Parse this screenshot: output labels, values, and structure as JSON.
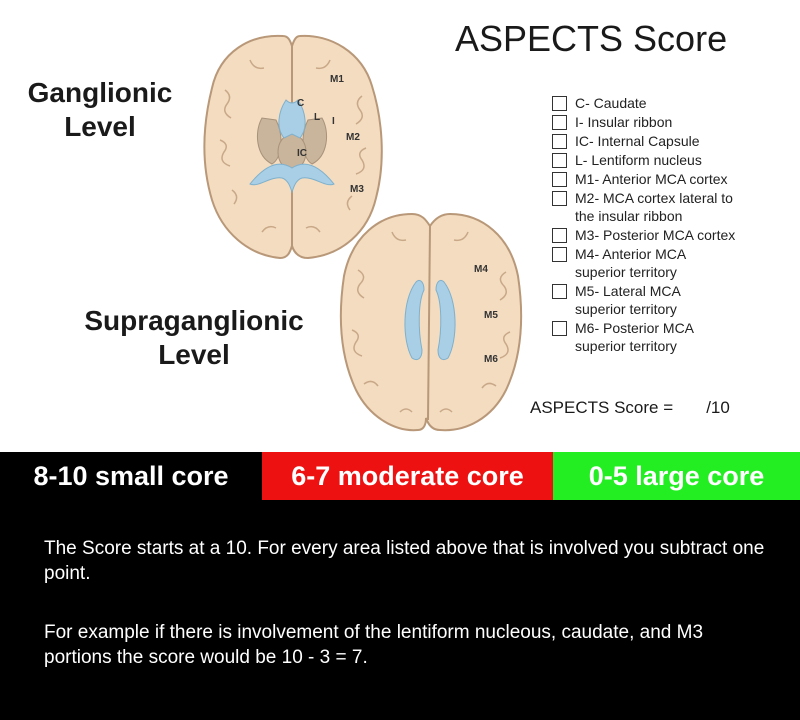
{
  "title": "ASPECTS Score",
  "level_labels": {
    "ganglionic": "Ganglionic\nLevel",
    "supraganglionic": "Supraganglionic\nLevel"
  },
  "brain_labels": {
    "ganglionic": [
      "M1",
      "C",
      "L",
      "I",
      "M2",
      "IC",
      "M3"
    ],
    "supraganglionic": [
      "M4",
      "M5",
      "M6"
    ]
  },
  "checklist": [
    "C- Caudate",
    "I- Insular ribbon",
    "IC- Internal Capsule",
    "L- Lentiform nucleus",
    "M1- Anterior MCA cortex",
    "M2- MCA cortex lateral to\n     the insular ribbon",
    "M3- Posterior MCA cortex",
    "M4- Anterior MCA\n     superior territory",
    "M5- Lateral MCA\n     superior territory",
    "M6- Posterior MCA\n     superior territory"
  ],
  "score_line": "ASPECTS Score =       /10",
  "bands": {
    "small": "8-10 small core",
    "moderate": "6-7 moderate core",
    "large": "0-5 large core"
  },
  "colors": {
    "moderate": "#ee1111",
    "large": "#22ee22",
    "brain": "#f3dcc0",
    "ventricle": "#a8cfe6",
    "nuclei": "#c9b49c"
  },
  "paragraphs": [
    "The Score starts at a 10. For every area listed above that is involved you subtract one point.",
    "For example if there is involvement of the lentiform nucleous, caudate, and M3 portions the score would be 10 - 3 = 7."
  ]
}
